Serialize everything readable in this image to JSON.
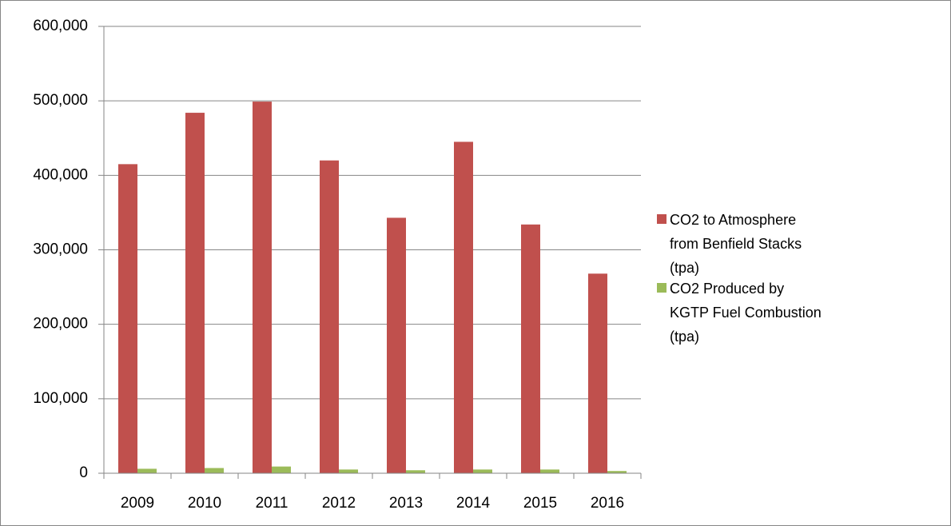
{
  "chart_data": {
    "type": "bar",
    "categories": [
      "2009",
      "2010",
      "2011",
      "2012",
      "2013",
      "2014",
      "2015",
      "2016"
    ],
    "series": [
      {
        "name": "CO2 to Atmosphere from Benfield Stacks (tpa)",
        "color": "#c0504d",
        "values": [
          415000,
          484000,
          499000,
          420000,
          343000,
          445000,
          334000,
          268000
        ]
      },
      {
        "name": "CO2 Produced by KGTP Fuel Combustion (tpa)",
        "color": "#9bbb59",
        "values": [
          6000,
          7000,
          9000,
          5000,
          4000,
          5000,
          5000,
          3000
        ]
      }
    ],
    "ylim": [
      0,
      600000
    ],
    "yticks": [
      0,
      {
        "value": 100000,
        "label": "100,000"
      },
      {
        "value": 200000,
        "label": "200,000"
      },
      {
        "value": 300000,
        "label": "300,000"
      },
      {
        "value": 400000,
        "label": "400,000"
      },
      {
        "value": 500000,
        "label": "500,000"
      },
      {
        "value": 600000,
        "label": "600,000"
      }
    ],
    "grid": true,
    "legend": "right"
  }
}
